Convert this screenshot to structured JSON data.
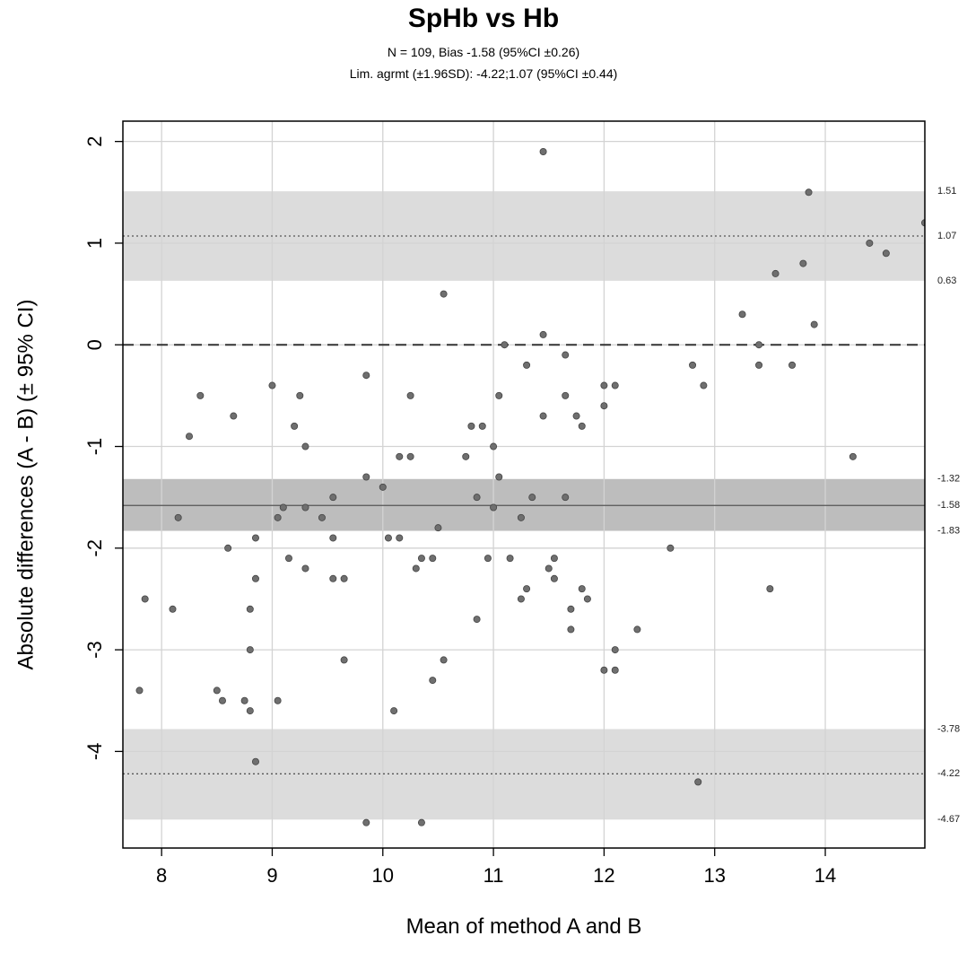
{
  "chart_data": {
    "type": "scatter",
    "title": "SpHb vs Hb",
    "subtitle_lines": [
      "N = 109, Bias -1.58 (95%CI ±0.26)",
      "Lim. agrmt (±1.96SD): -4.22;1.07 (95%CI ±0.44)"
    ],
    "xlabel": "Mean of method A and B",
    "ylabel": "Absolute differences (A - B) (± 95% CI)",
    "xlim": [
      7.65,
      14.9
    ],
    "ylim": [
      -4.95,
      2.2
    ],
    "xticks": [
      8,
      9,
      10,
      11,
      12,
      13,
      14
    ],
    "yticks": [
      2,
      1,
      0,
      -1,
      -2,
      -3,
      -4
    ],
    "grid": true,
    "zero_line": 0,
    "bias": {
      "value": -1.58,
      "ci": [
        -1.83,
        -1.32
      ]
    },
    "upper_loa": {
      "value": 1.07,
      "ci": [
        0.63,
        1.51
      ]
    },
    "lower_loa": {
      "value": -4.22,
      "ci": [
        -4.67,
        -3.78
      ]
    },
    "right_labels": [
      "1.51",
      "1.07",
      "0.63",
      "-1.32",
      "-1.58",
      "-1.83",
      "-3.78",
      "-4.22",
      "-4.67"
    ],
    "colors": {
      "points": "#6f6f6f",
      "ci_band": "#dcdcdc",
      "bias_band": "#bdbdbd",
      "grid": "#d3d3d3"
    },
    "points": [
      {
        "x": 7.8,
        "y": -3.4
      },
      {
        "x": 7.85,
        "y": -2.5
      },
      {
        "x": 8.1,
        "y": -2.6
      },
      {
        "x": 8.15,
        "y": -1.7
      },
      {
        "x": 8.25,
        "y": -0.9
      },
      {
        "x": 8.35,
        "y": -0.5
      },
      {
        "x": 8.5,
        "y": -3.4
      },
      {
        "x": 8.55,
        "y": -3.5
      },
      {
        "x": 8.6,
        "y": -2.0
      },
      {
        "x": 8.65,
        "y": -0.7
      },
      {
        "x": 8.75,
        "y": -3.5
      },
      {
        "x": 8.8,
        "y": -3.6
      },
      {
        "x": 8.8,
        "y": -3.0
      },
      {
        "x": 8.8,
        "y": -2.6
      },
      {
        "x": 8.85,
        "y": -2.3
      },
      {
        "x": 8.85,
        "y": -1.9
      },
      {
        "x": 8.85,
        "y": -4.1
      },
      {
        "x": 9.0,
        "y": -0.4
      },
      {
        "x": 9.05,
        "y": -1.7
      },
      {
        "x": 9.05,
        "y": -3.5
      },
      {
        "x": 9.1,
        "y": -1.6
      },
      {
        "x": 9.15,
        "y": -2.1
      },
      {
        "x": 9.2,
        "y": -0.8
      },
      {
        "x": 9.25,
        "y": -0.5
      },
      {
        "x": 9.3,
        "y": -1.0
      },
      {
        "x": 9.3,
        "y": -1.6
      },
      {
        "x": 9.3,
        "y": -2.2
      },
      {
        "x": 9.45,
        "y": -1.7
      },
      {
        "x": 9.55,
        "y": -1.5
      },
      {
        "x": 9.55,
        "y": -1.9
      },
      {
        "x": 9.55,
        "y": -2.3
      },
      {
        "x": 9.65,
        "y": -2.3
      },
      {
        "x": 9.65,
        "y": -3.1
      },
      {
        "x": 9.85,
        "y": -0.3
      },
      {
        "x": 9.85,
        "y": -1.3
      },
      {
        "x": 9.85,
        "y": -4.7
      },
      {
        "x": 10.0,
        "y": -1.4
      },
      {
        "x": 10.05,
        "y": -1.9
      },
      {
        "x": 10.1,
        "y": -3.6
      },
      {
        "x": 10.15,
        "y": -1.1
      },
      {
        "x": 10.15,
        "y": -1.9
      },
      {
        "x": 10.25,
        "y": -0.5
      },
      {
        "x": 10.25,
        "y": -1.1
      },
      {
        "x": 10.3,
        "y": -2.2
      },
      {
        "x": 10.35,
        "y": -2.1
      },
      {
        "x": 10.35,
        "y": -4.7
      },
      {
        "x": 10.45,
        "y": -2.1
      },
      {
        "x": 10.45,
        "y": -3.3
      },
      {
        "x": 10.5,
        "y": -1.8
      },
      {
        "x": 10.55,
        "y": 0.5
      },
      {
        "x": 10.55,
        "y": -3.1
      },
      {
        "x": 10.75,
        "y": -1.1
      },
      {
        "x": 10.8,
        "y": -0.8
      },
      {
        "x": 10.85,
        "y": -1.5
      },
      {
        "x": 10.85,
        "y": -2.7
      },
      {
        "x": 10.9,
        "y": -0.8
      },
      {
        "x": 10.95,
        "y": -2.1
      },
      {
        "x": 11.0,
        "y": -1.0
      },
      {
        "x": 11.0,
        "y": -1.6
      },
      {
        "x": 11.05,
        "y": -0.5
      },
      {
        "x": 11.05,
        "y": -1.3
      },
      {
        "x": 11.1,
        "y": 0.0
      },
      {
        "x": 11.15,
        "y": -2.1
      },
      {
        "x": 11.25,
        "y": -1.7
      },
      {
        "x": 11.25,
        "y": -2.5
      },
      {
        "x": 11.3,
        "y": -0.2
      },
      {
        "x": 11.3,
        "y": -2.4
      },
      {
        "x": 11.35,
        "y": -1.5
      },
      {
        "x": 11.45,
        "y": 1.9
      },
      {
        "x": 11.45,
        "y": 0.1
      },
      {
        "x": 11.45,
        "y": -0.7
      },
      {
        "x": 11.5,
        "y": -2.2
      },
      {
        "x": 11.55,
        "y": -2.1
      },
      {
        "x": 11.55,
        "y": -2.3
      },
      {
        "x": 11.65,
        "y": -0.1
      },
      {
        "x": 11.65,
        "y": -0.5
      },
      {
        "x": 11.65,
        "y": -1.5
      },
      {
        "x": 11.7,
        "y": -2.6
      },
      {
        "x": 11.7,
        "y": -2.8
      },
      {
        "x": 11.75,
        "y": -0.7
      },
      {
        "x": 11.8,
        "y": -0.8
      },
      {
        "x": 11.8,
        "y": -2.4
      },
      {
        "x": 11.85,
        "y": -2.5
      },
      {
        "x": 12.0,
        "y": -0.4
      },
      {
        "x": 12.0,
        "y": -0.6
      },
      {
        "x": 12.0,
        "y": -3.2
      },
      {
        "x": 12.1,
        "y": -0.4
      },
      {
        "x": 12.1,
        "y": -3.0
      },
      {
        "x": 12.1,
        "y": -3.2
      },
      {
        "x": 12.3,
        "y": -2.8
      },
      {
        "x": 12.6,
        "y": -2.0
      },
      {
        "x": 12.8,
        "y": -0.2
      },
      {
        "x": 12.85,
        "y": -4.3
      },
      {
        "x": 12.9,
        "y": -0.4
      },
      {
        "x": 13.25,
        "y": 0.3
      },
      {
        "x": 13.4,
        "y": 0.0
      },
      {
        "x": 13.4,
        "y": -0.2
      },
      {
        "x": 13.5,
        "y": -2.4
      },
      {
        "x": 13.55,
        "y": 0.7
      },
      {
        "x": 13.7,
        "y": -0.2
      },
      {
        "x": 13.8,
        "y": 0.8
      },
      {
        "x": 13.85,
        "y": 1.5
      },
      {
        "x": 13.9,
        "y": 0.2
      },
      {
        "x": 14.25,
        "y": -1.1
      },
      {
        "x": 14.4,
        "y": 1.0
      },
      {
        "x": 14.55,
        "y": 0.9
      },
      {
        "x": 14.9,
        "y": 1.2
      }
    ]
  }
}
